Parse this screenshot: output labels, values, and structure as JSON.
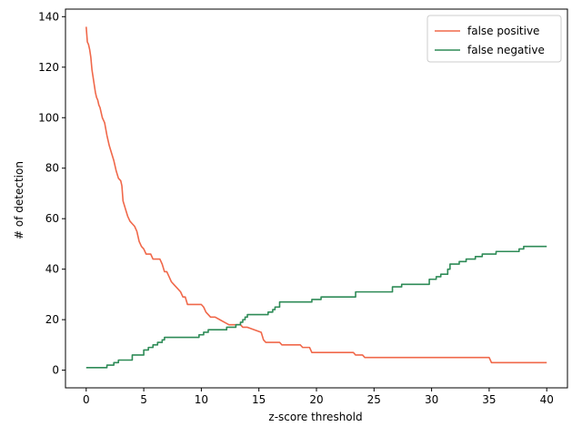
{
  "chart_data": {
    "type": "line",
    "xlabel": "z-score threshold",
    "ylabel": "# of detection",
    "xlim": [
      -1.8,
      41.8
    ],
    "ylim": [
      -7,
      143
    ],
    "xticks": [
      0,
      5,
      10,
      15,
      20,
      25,
      30,
      35,
      40
    ],
    "yticks": [
      0,
      20,
      40,
      60,
      80,
      100,
      120,
      140
    ],
    "grid": false,
    "legend_position": "top-right",
    "series": [
      {
        "name": "false positive",
        "color": "#f0684a",
        "step": false,
        "x": [
          0,
          0.1,
          0.2,
          0.3,
          0.4,
          0.5,
          0.6,
          0.7,
          0.8,
          0.9,
          1.0,
          1.1,
          1.2,
          1.4,
          1.6,
          1.8,
          2.0,
          2.2,
          2.4,
          2.6,
          2.8,
          3.0,
          3.1,
          3.2,
          3.4,
          3.6,
          3.8,
          4.0,
          4.2,
          4.4,
          4.6,
          4.8,
          5.0,
          5.2,
          5.6,
          5.8,
          6.4,
          6.6,
          6.8,
          7.0,
          7.2,
          7.4,
          7.6,
          8.0,
          8.2,
          8.4,
          8.6,
          8.8,
          9.0,
          10.0,
          10.2,
          10.4,
          10.6,
          10.8,
          11.0,
          11.2,
          11.6,
          12.0,
          12.4,
          13.4,
          13.6,
          14.0,
          15.2,
          15.4,
          15.6,
          16.0,
          16.8,
          17.0,
          18.6,
          18.8,
          19.4,
          19.6,
          23.2,
          23.4,
          24.0,
          24.2,
          35.0,
          35.2,
          40.0
        ],
        "y": [
          136,
          130,
          129,
          127,
          124,
          119,
          116,
          113,
          110,
          108,
          107,
          105,
          104,
          100,
          98,
          93,
          89,
          86,
          83,
          79,
          76,
          75,
          73,
          67,
          64,
          61,
          59,
          58,
          57,
          55,
          51,
          49,
          48,
          46,
          46,
          44,
          44,
          42,
          39,
          39,
          37,
          35,
          34,
          32,
          31,
          29,
          29,
          26,
          26,
          26,
          25,
          23,
          22,
          21,
          21,
          21,
          20,
          19,
          18,
          18,
          17,
          17,
          15,
          12,
          11,
          11,
          11,
          10,
          10,
          9,
          9,
          7,
          7,
          6,
          6,
          5,
          5,
          3,
          3
        ]
      },
      {
        "name": "false negative",
        "color": "#2e8b57",
        "step": true,
        "x": [
          0,
          1.8,
          2.4,
          2.8,
          3.6,
          4.0,
          4.6,
          5.0,
          5.4,
          5.8,
          6.2,
          6.6,
          6.8,
          9.8,
          10.2,
          10.6,
          11.0,
          12.2,
          13.0,
          13.4,
          13.6,
          13.8,
          14.0,
          15.8,
          16.2,
          16.4,
          16.8,
          19.6,
          20.4,
          23.4,
          26.6,
          27.4,
          29.6,
          29.8,
          30.4,
          30.8,
          31.4,
          31.6,
          32.4,
          33.0,
          33.8,
          34.4,
          35.6,
          36.4,
          37.6,
          38.0,
          40.0
        ],
        "y": [
          1,
          2,
          3,
          4,
          4,
          6,
          6,
          8,
          9,
          10,
          11,
          12,
          13,
          14,
          15,
          16,
          16,
          17,
          18,
          19,
          20,
          21,
          22,
          23,
          24,
          25,
          27,
          28,
          29,
          31,
          33,
          34,
          34,
          36,
          37,
          38,
          40,
          42,
          43,
          44,
          45,
          46,
          47,
          47,
          48,
          49,
          49
        ]
      }
    ]
  }
}
